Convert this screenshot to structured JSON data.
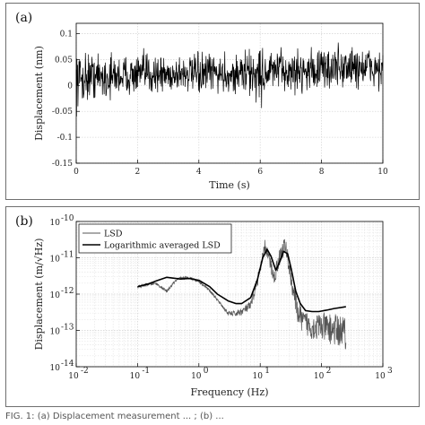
{
  "chart_data": [
    {
      "type": "line",
      "panel_label": "(a)",
      "xlabel": "Time (s)",
      "ylabel": "Displacement (nm)",
      "xlim": [
        0,
        10
      ],
      "ylim": [
        -0.15,
        0.12
      ],
      "xticks": [
        0,
        2,
        4,
        6,
        8,
        10
      ],
      "xtick_labels": [
        "0",
        "2",
        "4",
        "6",
        "8",
        "10"
      ],
      "yticks": [
        -0.15,
        -0.1,
        -0.05,
        0,
        0.05,
        0.1
      ],
      "ytick_labels": [
        "-0.15",
        "-0.1",
        "-0.05",
        "0",
        "0.05",
        "0.1"
      ],
      "grid": true,
      "series": [
        {
          "color": "#000000",
          "x": [
            0,
            0.5,
            1,
            1.5,
            2,
            2.5,
            3,
            3.5,
            4,
            4.5,
            5,
            5.5,
            6,
            6.5,
            7,
            7.5,
            8,
            8.5,
            9,
            9.5,
            10
          ],
          "y": [
            0.01,
            0.02,
            0.015,
            0.02,
            0.02,
            0.025,
            0.02,
            0.025,
            0.02,
            0.025,
            0.02,
            0.025,
            0.02,
            0.03,
            0.025,
            0.03,
            0.03,
            0.035,
            0.035,
            0.035,
            0.03
          ],
          "y_min": [
            -0.06,
            -0.05,
            -0.04,
            -0.035,
            -0.04,
            -0.045,
            -0.03,
            -0.035,
            -0.035,
            -0.04,
            -0.03,
            -0.045,
            -0.07,
            -0.03,
            -0.03,
            -0.025,
            -0.03,
            -0.02,
            -0.025,
            -0.02,
            -0.02
          ],
          "y_max": [
            0.1,
            0.09,
            0.085,
            0.08,
            0.08,
            0.08,
            0.075,
            0.08,
            0.08,
            0.08,
            0.08,
            0.085,
            0.09,
            0.09,
            0.09,
            0.09,
            0.1,
            0.105,
            0.105,
            0.1,
            0.09
          ]
        }
      ]
    },
    {
      "type": "line",
      "panel_label": "(b)",
      "xlabel": "Frequency (Hz)",
      "ylabel": "Displacement (m/√Hz)",
      "xscale": "log",
      "yscale": "log",
      "xlim": [
        0.01,
        1000
      ],
      "ylim": [
        1e-14,
        1e-10
      ],
      "xticks": [
        0.01,
        0.1,
        1,
        10,
        100,
        1000
      ],
      "xtick_labels": [
        "10",
        "10",
        "10",
        "10",
        "10",
        "10"
      ],
      "xtick_exponents": [
        "-2",
        "-1",
        "0",
        "1",
        "2",
        "3"
      ],
      "yticks": [
        1e-14,
        1e-13,
        1e-12,
        1e-11,
        1e-10
      ],
      "ytick_labels": [
        "10",
        "10",
        "10",
        "10",
        "10"
      ],
      "ytick_exponents": [
        "-14",
        "-13",
        "-12",
        "-11",
        "-10"
      ],
      "grid": true,
      "legend_position": "top-left",
      "series": [
        {
          "name": "LSD",
          "color": "#555555",
          "x": [
            0.1,
            0.15,
            0.2,
            0.3,
            0.4,
            0.5,
            0.7,
            1,
            1.5,
            2,
            3,
            4,
            5,
            7,
            10,
            12,
            14,
            17,
            20,
            25,
            28,
            32,
            40,
            50,
            70,
            100,
            150,
            200,
            250
          ],
          "y": [
            1.6e-12,
            1.9e-12,
            2e-12,
            1.2e-12,
            2.2e-12,
            2.8e-12,
            2.9e-12,
            2.3e-12,
            1.3e-12,
            7e-13,
            3e-13,
            3e-13,
            3.5e-13,
            5e-13,
            5e-12,
            2.3e-11,
            1e-11,
            3e-12,
            1e-11,
            2.5e-11,
            1.2e-11,
            3e-12,
            4e-13,
            2e-13,
            1.5e-13,
            1.5e-13,
            1.3e-13,
            1.2e-13,
            1.1e-13
          ]
        },
        {
          "name": "Logarithmic averaged LSD",
          "color": "#000000",
          "x": [
            0.1,
            0.15,
            0.2,
            0.3,
            0.5,
            0.7,
            1,
            1.5,
            2,
            3,
            4,
            5,
            7,
            9,
            11,
            13,
            15,
            18,
            21,
            24,
            28,
            32,
            38,
            45,
            55,
            70,
            90,
            120,
            160,
            250
          ],
          "y": [
            1.6e-12,
            1.9e-12,
            2.3e-12,
            2.9e-12,
            2.6e-12,
            2.7e-12,
            2.4e-12,
            1.6e-12,
            1e-12,
            6.5e-13,
            5.5e-13,
            5.5e-13,
            8e-13,
            2.5e-12,
            1e-11,
            1.7e-11,
            1.1e-11,
            4.5e-12,
            8e-12,
            1.5e-11,
            1.3e-11,
            5e-12,
            1.2e-12,
            5.5e-13,
            3.5e-13,
            3.3e-13,
            3.3e-13,
            3.6e-13,
            4e-13,
            4.5e-13
          ]
        }
      ]
    }
  ],
  "caption": "FIG. 1: (a) Displacement measurement ... ; (b) ..."
}
